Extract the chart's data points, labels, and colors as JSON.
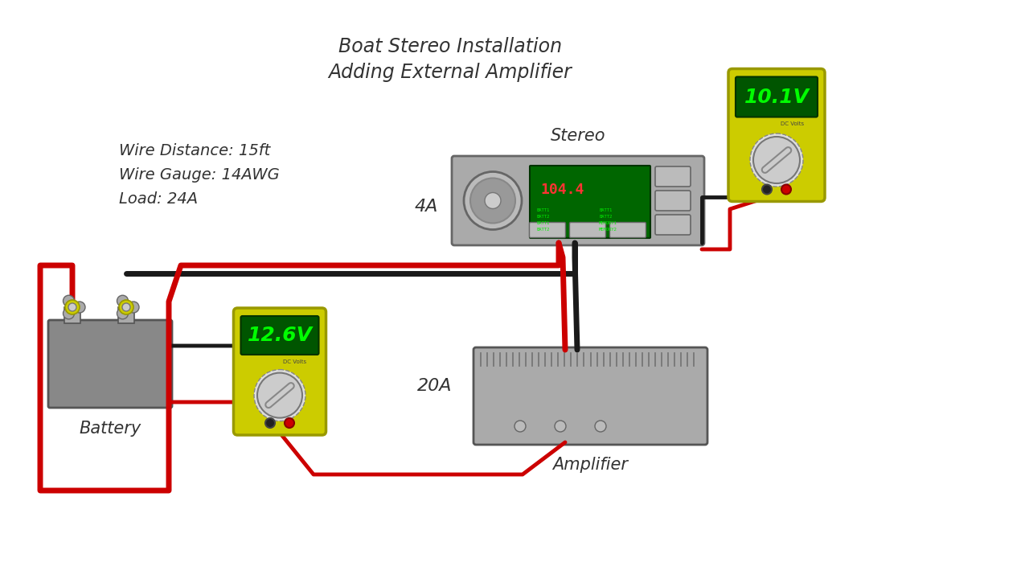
{
  "title_line1": "Boat Stereo Installation",
  "title_line2": "Adding External Amplifier",
  "info_line1": "Wire Distance: 15ft",
  "info_line2": "Wire Gauge: 14AWG",
  "info_line3": "Load: 24A",
  "battery_label": "Battery",
  "stereo_label": "Stereo",
  "amplifier_label": "Amplifier",
  "meter1_voltage": "12.6V",
  "meter2_voltage": "10.1V",
  "meter_sub": "DC Volts",
  "label_4A": "4A",
  "label_20A": "20A",
  "freq_display": "104.4",
  "bg_color": "#FFFFFF",
  "wire_red": "#CC0000",
  "wire_black": "#1A1A1A",
  "battery_body": "#888888",
  "battery_terminal_yellow": "#CCCC00",
  "battery_connector": "#AAAAAA",
  "stereo_body": "#AAAAAA",
  "stereo_screen_bg": "#006600",
  "stereo_freq_color": "#FF3333",
  "stereo_text_color": "#00EE00",
  "amplifier_body": "#AAAAAA",
  "meter_body": "#CCCC00",
  "meter_screen_bg": "#005500",
  "meter_text_color": "#00FF00",
  "meter_dial_bg": "#CCCCCC",
  "title_fontsize": 17,
  "info_fontsize": 14,
  "label_fontsize": 15
}
